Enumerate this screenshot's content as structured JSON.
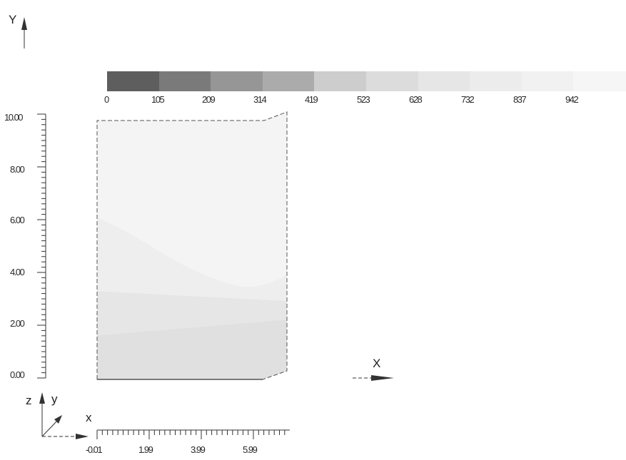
{
  "orientation": {
    "top_y_label": "Y",
    "x_arrow_label": "X",
    "triad_z": "z",
    "triad_y": "y",
    "triad_x": "x"
  },
  "colorbar": {
    "ticks": [
      "0",
      "105",
      "209",
      "314",
      "419",
      "523",
      "628",
      "732",
      "837",
      "942"
    ],
    "colors": [
      "#5e5e5e",
      "#7a7a7a",
      "#969696",
      "#ababab",
      "#cdcdcd",
      "#dcdcdc",
      "#e6e6e6",
      "#ececec",
      "#f1f1f1",
      "#f6f6f6"
    ]
  },
  "y_axis": {
    "ticks": [
      "10.00",
      "8.00",
      "6.00",
      "4.00",
      "2.00",
      "0.00"
    ]
  },
  "x_axis": {
    "ticks": [
      "-0.01",
      "1.99",
      "3.99",
      "5.99"
    ]
  },
  "contour_colors": {
    "upper": "#f4f4f4",
    "middle": "#eeeeee",
    "lower": "#e6e6e6",
    "bottom": "#e0e0e0"
  }
}
